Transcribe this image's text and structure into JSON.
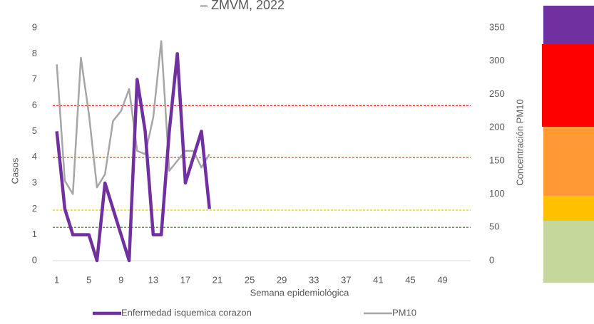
{
  "chart_data": {
    "type": "line",
    "title": "– ZMVM, 2022",
    "x_label": "Semana epidemiológica",
    "y_label": "Casos",
    "y2_label": "Concentración PM10",
    "x": [
      1,
      2,
      3,
      4,
      5,
      6,
      7,
      8,
      9,
      10,
      11,
      12,
      13,
      14,
      15,
      16,
      17,
      18,
      19,
      20
    ],
    "xlim": [
      0.5,
      52.5
    ],
    "xticks": [
      1,
      5,
      9,
      13,
      17,
      21,
      25,
      29,
      33,
      37,
      41,
      45,
      49
    ],
    "ylim": [
      0,
      9
    ],
    "yticks": [
      0,
      1,
      2,
      3,
      4,
      5,
      6,
      7,
      8,
      9
    ],
    "y2lim": [
      0,
      350
    ],
    "y2ticks": [
      0,
      50,
      100,
      150,
      200,
      250,
      300,
      350
    ],
    "series": [
      {
        "name": "Enfermedad isquemica corazon",
        "color": "#7030a0",
        "values": [
          5,
          2,
          1,
          1,
          1,
          0,
          3,
          2,
          1,
          0,
          7,
          5,
          1,
          1,
          5,
          8,
          3,
          4,
          5,
          2
        ]
      },
      {
        "name": "PM10",
        "color": "#a6a6a6",
        "axis": "y2",
        "values": [
          295,
          120,
          100,
          305,
          220,
          110,
          130,
          210,
          225,
          258,
          165,
          160,
          215,
          330,
          135,
          150,
          165,
          165,
          140,
          160
        ]
      }
    ],
    "reference_lines": [
      {
        "value": 233,
        "color": "#ff0000",
        "axis": "y2"
      },
      {
        "value": 155,
        "color": "#c55a11",
        "axis": "y2"
      },
      {
        "value": 76,
        "color": "#ffc000",
        "axis": "y2"
      },
      {
        "value": 50,
        "color": "#548235",
        "axis": "y2"
      }
    ]
  }
}
